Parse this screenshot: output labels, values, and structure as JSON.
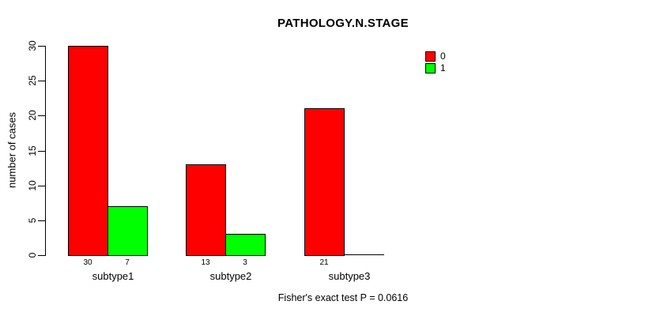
{
  "chart_data": {
    "type": "bar",
    "title": "PATHOLOGY.N.STAGE",
    "categories": [
      "subtype1",
      "subtype2",
      "subtype3"
    ],
    "series": [
      {
        "name": "0",
        "color": "#FF0000",
        "values": [
          30,
          13,
          21
        ]
      },
      {
        "name": "1",
        "color": "#00FF00",
        "values": [
          7,
          3,
          0
        ]
      }
    ],
    "bar_value_labels": [
      [
        "30",
        "7"
      ],
      [
        "13",
        "3"
      ],
      [
        "21",
        ""
      ]
    ],
    "xlabel": "",
    "ylabel": "number of cases",
    "ylim": [
      0,
      30
    ],
    "yticks": [
      0,
      5,
      10,
      15,
      20,
      25,
      30
    ],
    "grid": false,
    "legend": {
      "position": "top-right",
      "entries": [
        {
          "label": "0",
          "color": "#FF0000"
        },
        {
          "label": "1",
          "color": "#00FF00"
        }
      ]
    },
    "annotation": "Fisher's exact test P = 0.0616"
  },
  "colors": {
    "background": "#FFFFFF",
    "axis": "#000000",
    "text": "#000000",
    "series_0": "#FF0000",
    "series_1": "#00FF00"
  }
}
